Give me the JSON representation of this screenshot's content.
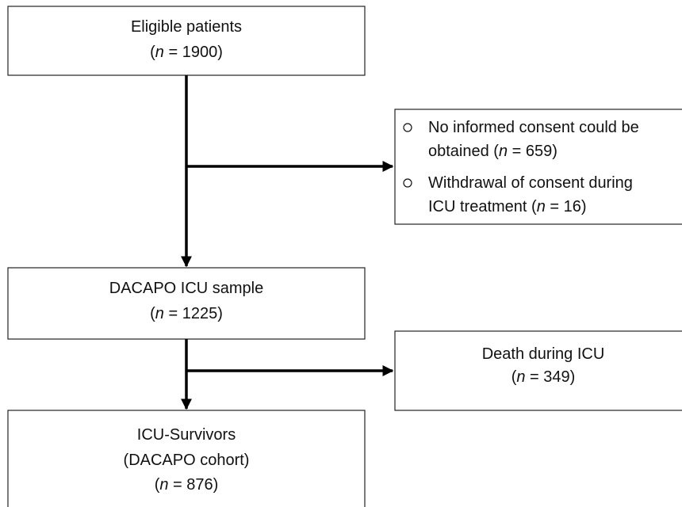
{
  "boxes": [
    {
      "lines": [
        [
          "Eligible patients"
        ],
        [
          "(",
          {
            "italic": "n"
          },
          " = 1900)"
        ]
      ]
    },
    {
      "bullets": [
        {
          "lines": [
            [
              "No informed consent could be"
            ],
            [
              "obtained (",
              {
                "italic": "n"
              },
              " = 659)"
            ]
          ]
        },
        {
          "lines": [
            [
              "Withdrawal of consent during"
            ],
            [
              "ICU treatment (",
              {
                "italic": "n"
              },
              " = 16)"
            ]
          ]
        }
      ]
    },
    {
      "lines": [
        [
          "DACAPO ICU sample"
        ],
        [
          "(",
          {
            "italic": "n"
          },
          " = 1225)"
        ]
      ]
    },
    {
      "lines": [
        [
          "Death during ICU"
        ],
        [
          "(",
          {
            "italic": "n"
          },
          " = 349)"
        ]
      ]
    },
    {
      "lines": [
        [
          "ICU-Survivors"
        ],
        [
          "(DACAPO cohort)"
        ],
        [
          "(",
          {
            "italic": "n"
          },
          " = 876)"
        ]
      ]
    }
  ]
}
